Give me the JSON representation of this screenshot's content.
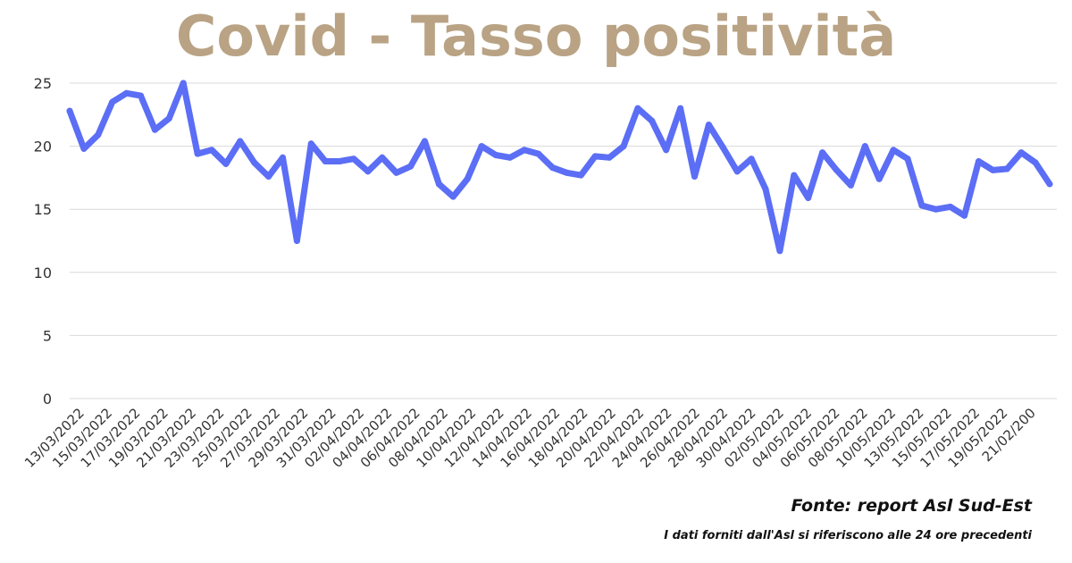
{
  "chart_data": {
    "type": "line",
    "title": "Covid - Tasso positività",
    "xlabel": "",
    "ylabel": "",
    "ylim": [
      0,
      25
    ],
    "yticks": [
      0,
      5,
      10,
      15,
      20,
      25
    ],
    "grid": true,
    "x_tick_labels": [
      "13/03/2022",
      "15/03/2022",
      "17/03/2022",
      "19/03/2022",
      "21/03/2022",
      "23/03/2022",
      "25/03/2022",
      "27/03/2022",
      "29/03/2022",
      "31/03/2022",
      "02/04/2022",
      "04/04/2022",
      "06/04/2022",
      "08/04/2022",
      "10/04/2022",
      "12/04/2022",
      "14/04/2022",
      "16/04/2022",
      "18/04/2022",
      "20/04/2022",
      "22/04/2022",
      "24/04/2022",
      "26/04/2022",
      "28/04/2022",
      "30/04/2022",
      "02/05/2022",
      "04/05/2022",
      "06/05/2022",
      "08/05/2022",
      "10/05/2022",
      "13/05/2022",
      "15/05/2022",
      "17/05/2022",
      "19/05/2022",
      "21/02/200"
    ],
    "series": [
      {
        "values": [
          22.8,
          19.8,
          20.9,
          23.5,
          24.2,
          24.0,
          21.3,
          22.2,
          25.0,
          19.4,
          19.7,
          18.6,
          20.4,
          18.7,
          17.6,
          19.1,
          12.5,
          20.2,
          18.8,
          18.8,
          19.0,
          18.0,
          19.1,
          17.9,
          18.4,
          20.4,
          17.0,
          16.0,
          17.4,
          20.0,
          19.3,
          19.1,
          19.7,
          19.4,
          18.3,
          17.9,
          17.7,
          19.2,
          19.1,
          20.0,
          23.0,
          22.0,
          19.7,
          23.0,
          17.6,
          21.7,
          19.9,
          18.0,
          19.0,
          16.6,
          11.7,
          17.7,
          15.9,
          19.5,
          18.1,
          16.9,
          20.0,
          17.4,
          19.7,
          19.0,
          15.3,
          15.0,
          15.2,
          14.5,
          18.8,
          18.1,
          18.2,
          19.5,
          18.7,
          17.0
        ],
        "color": "#5B6EF5"
      }
    ]
  },
  "colors": {
    "title": "#B9A384",
    "grid": "#d9d9d9",
    "axis_text": "#333333",
    "line": "#5B6EF5"
  },
  "footer": {
    "source": "Fonte: report Asl Sud-Est",
    "note": "I dati forniti dall'Asl si riferiscono alle 24 ore precedenti"
  }
}
